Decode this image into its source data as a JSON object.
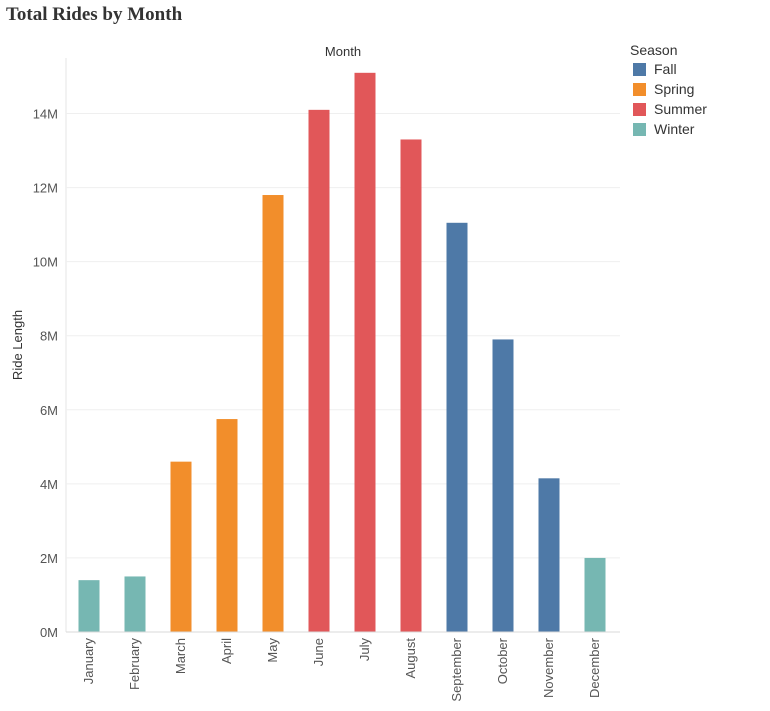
{
  "chart_data": {
    "type": "bar",
    "title": "Total Rides by Month",
    "column_header": "Month",
    "ylabel": "Ride Length",
    "ylim": [
      0,
      15500000
    ],
    "yticks": [
      0,
      2000000,
      4000000,
      6000000,
      8000000,
      10000000,
      12000000,
      14000000
    ],
    "ytick_labels": [
      "0M",
      "2M",
      "4M",
      "6M",
      "8M",
      "10M",
      "12M",
      "14M"
    ],
    "grid": true,
    "legend_position": "top-right",
    "categories": [
      "January",
      "February",
      "March",
      "April",
      "May",
      "June",
      "July",
      "August",
      "September",
      "October",
      "November",
      "December"
    ],
    "values": [
      1400000,
      1500000,
      4600000,
      5750000,
      11800000,
      14100000,
      15100000,
      13300000,
      11050000,
      7900000,
      4150000,
      2000000
    ],
    "season_of_category": [
      "Winter",
      "Winter",
      "Spring",
      "Spring",
      "Spring",
      "Summer",
      "Summer",
      "Summer",
      "Fall",
      "Fall",
      "Fall",
      "Winter"
    ],
    "legend": {
      "title": "Season",
      "items": [
        {
          "name": "Fall",
          "color": "#4e79a7"
        },
        {
          "name": "Spring",
          "color": "#f28e2b"
        },
        {
          "name": "Summer",
          "color": "#e15759"
        },
        {
          "name": "Winter",
          "color": "#76b7b2"
        }
      ]
    }
  }
}
